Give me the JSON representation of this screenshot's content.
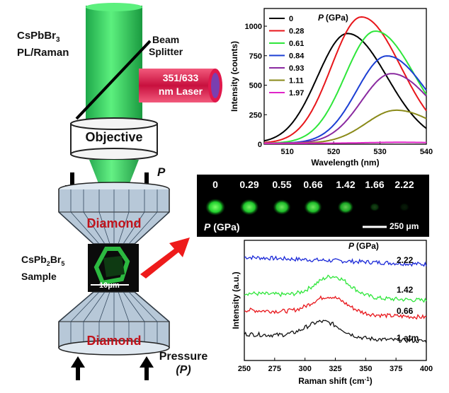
{
  "setup": {
    "material_line1": "CsPbBr",
    "material_sub": "3",
    "material_line2": "PL/Raman",
    "beam_splitter_line1": "Beam",
    "beam_splitter_line2": "Splitter",
    "laser_line1": "351/633",
    "laser_line2": "nm Laser",
    "objective": "Objective",
    "pressure_symbol": "P",
    "diamond_top": "Diamond",
    "diamond_bottom": "Diamond",
    "sample_line1_a": "CsPb",
    "sample_sub1": "2",
    "sample_line1_b": "Br",
    "sample_sub2": "5",
    "sample_line2": "Sample",
    "scale_bar": "10μm",
    "pressure_word": "Pressure",
    "pressure_paren": "(P)",
    "colors": {
      "beam": "#2ecc5e",
      "laser_red": "#e0184c",
      "laser_purple": "#7a3fb0",
      "diamond_face": "#b7c8d8",
      "diamond_text": "#c0131b",
      "arrow_red": "#ee1b1b"
    }
  },
  "images_strip": {
    "pressures": [
      "0",
      "0.29",
      "0.55",
      "0.66",
      "1.42",
      "1.66",
      "2.22"
    ],
    "brightness": [
      1.0,
      0.95,
      0.9,
      0.9,
      0.8,
      0.25,
      0.1
    ],
    "p_label": "P",
    "unit_label": "(GPa)",
    "scale_label": "250 μm"
  },
  "chart_data": [
    {
      "type": "line",
      "legend_title": "P (GPa)",
      "xlabel": "Wavelength (nm)",
      "ylabel": "Intensity (counts)",
      "xlim": [
        505,
        540
      ],
      "ylim": [
        0,
        1150
      ],
      "xticks": [
        510,
        520,
        530,
        540
      ],
      "yticks": [
        0,
        250,
        500,
        750,
        1000
      ],
      "legend_placement": "top-left",
      "series": [
        {
          "name": "0",
          "color": "#000000",
          "peak_x": 523.0,
          "peak_y": 930
        },
        {
          "name": "0.28",
          "color": "#e8161b",
          "peak_x": 526.0,
          "peak_y": 1070
        },
        {
          "name": "0.61",
          "color": "#2ee63a",
          "peak_x": 529.0,
          "peak_y": 950
        },
        {
          "name": "0.84",
          "color": "#1c3fd4",
          "peak_x": 531.5,
          "peak_y": 740
        },
        {
          "name": "0.93",
          "color": "#8a2aa0",
          "peak_x": 532.5,
          "peak_y": 590
        },
        {
          "name": "1.11",
          "color": "#8a8a18",
          "peak_x": 533.5,
          "peak_y": 280
        },
        {
          "name": "1.97",
          "color": "#e024c8",
          "peak_x": 534.0,
          "peak_y": 8
        }
      ]
    },
    {
      "type": "line",
      "legend_title": "P (GPa)",
      "xlabel": "Raman shift (cm-1)",
      "xlabel_main": "Raman shift (cm",
      "xlabel_sup": "-1",
      "xlabel_end": ")",
      "ylabel": "Intensity (a.u.)",
      "xlim": [
        250,
        400
      ],
      "xticks": [
        250,
        275,
        300,
        325,
        350,
        375,
        400
      ],
      "series": [
        {
          "name": "2.22",
          "color": "#1c2ad8",
          "offset": 0.86,
          "peak_x": 318,
          "peak_h": 0.0
        },
        {
          "name": "1.42",
          "color": "#2ee63a",
          "offset": 0.56,
          "peak_x": 323,
          "peak_h": 0.17
        },
        {
          "name": "0.66",
          "color": "#e8161b",
          "offset": 0.42,
          "peak_x": 320,
          "peak_h": 0.14
        },
        {
          "name": "1 atm",
          "color": "#111111",
          "offset": 0.22,
          "peak_x": 315,
          "peak_h": 0.13
        }
      ]
    }
  ]
}
